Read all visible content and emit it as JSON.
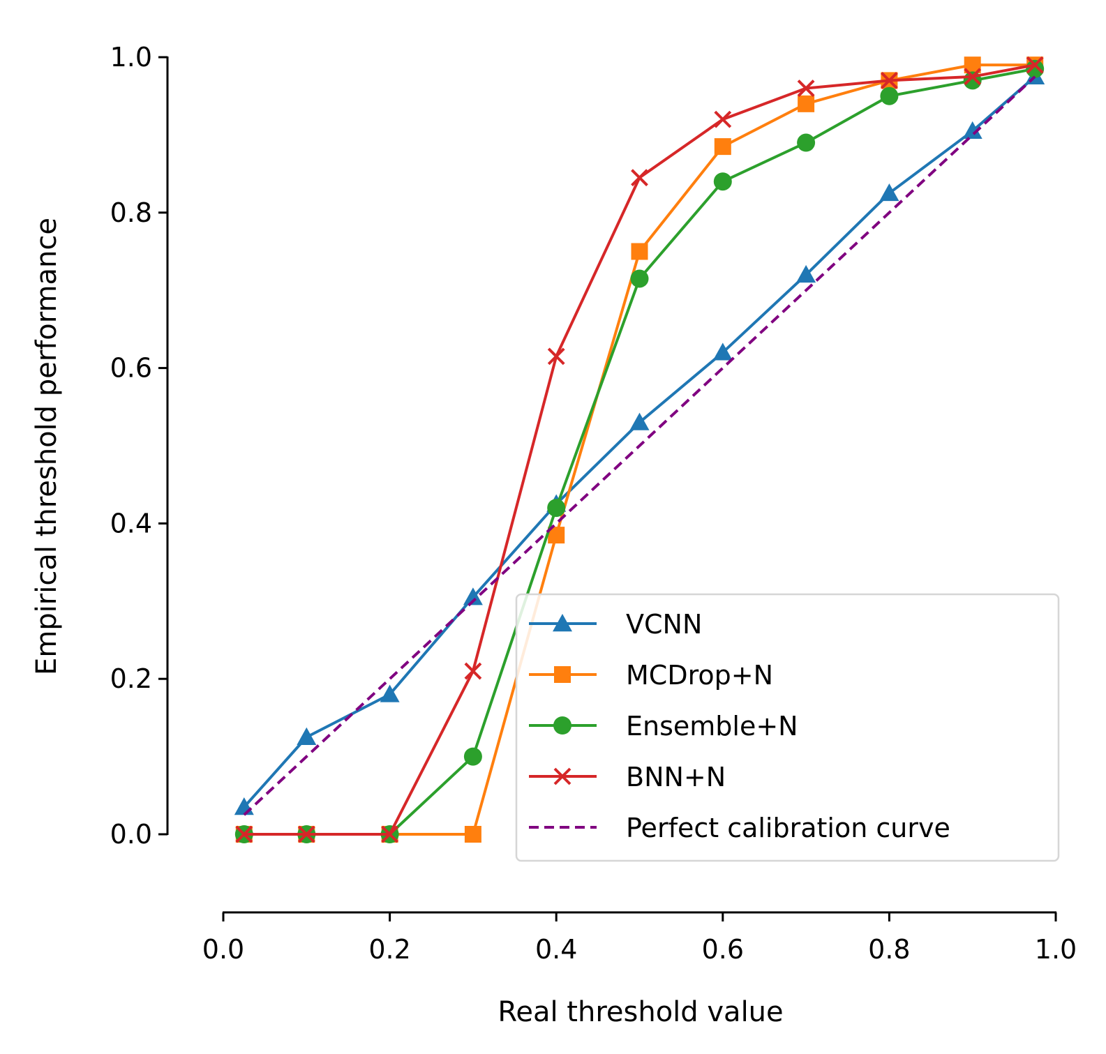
{
  "chart_data": {
    "type": "line",
    "xlabel": "Real threshold value",
    "ylabel": "Empirical threshold performance",
    "xlim": [
      0.0,
      1.0
    ],
    "ylim": [
      0.0,
      1.0
    ],
    "xticks": [
      "0.0",
      "0.2",
      "0.4",
      "0.6",
      "0.8",
      "1.0"
    ],
    "yticks": [
      "0.0",
      "0.2",
      "0.4",
      "0.6",
      "0.8",
      "1.0"
    ],
    "grid": false,
    "legend_position": "lower-right",
    "series": [
      {
        "name": "VCNN",
        "color": "#1f77b4",
        "marker": "triangle",
        "x": [
          0.025,
          0.1,
          0.2,
          0.3,
          0.4,
          0.5,
          0.6,
          0.7,
          0.8,
          0.9,
          0.975
        ],
        "y": [
          0.035,
          0.125,
          0.18,
          0.305,
          0.425,
          0.53,
          0.62,
          0.72,
          0.825,
          0.905,
          0.975
        ]
      },
      {
        "name": "MCDrop+N",
        "color": "#ff7f0e",
        "marker": "square",
        "x": [
          0.025,
          0.1,
          0.2,
          0.3,
          0.4,
          0.5,
          0.6,
          0.7,
          0.8,
          0.9,
          0.975
        ],
        "y": [
          0.0,
          0.0,
          0.0,
          0.0,
          0.385,
          0.75,
          0.885,
          0.94,
          0.97,
          0.99,
          0.99
        ]
      },
      {
        "name": "Ensemble+N",
        "color": "#2ca02c",
        "marker": "circle",
        "x": [
          0.025,
          0.1,
          0.2,
          0.3,
          0.4,
          0.5,
          0.6,
          0.7,
          0.8,
          0.9,
          0.975
        ],
        "y": [
          0.0,
          0.0,
          0.0,
          0.1,
          0.42,
          0.715,
          0.84,
          0.89,
          0.95,
          0.97,
          0.985
        ]
      },
      {
        "name": "BNN+N",
        "color": "#d62728",
        "marker": "x",
        "x": [
          0.025,
          0.1,
          0.2,
          0.3,
          0.4,
          0.5,
          0.6,
          0.7,
          0.8,
          0.9,
          0.975
        ],
        "y": [
          0.0,
          0.0,
          0.0,
          0.21,
          0.615,
          0.845,
          0.92,
          0.96,
          0.97,
          0.975,
          0.99
        ]
      },
      {
        "name": "Perfect calibration curve",
        "color": "#800080",
        "marker": "none",
        "dashed": true,
        "x": [
          0.025,
          0.975
        ],
        "y": [
          0.025,
          0.975
        ]
      }
    ]
  }
}
